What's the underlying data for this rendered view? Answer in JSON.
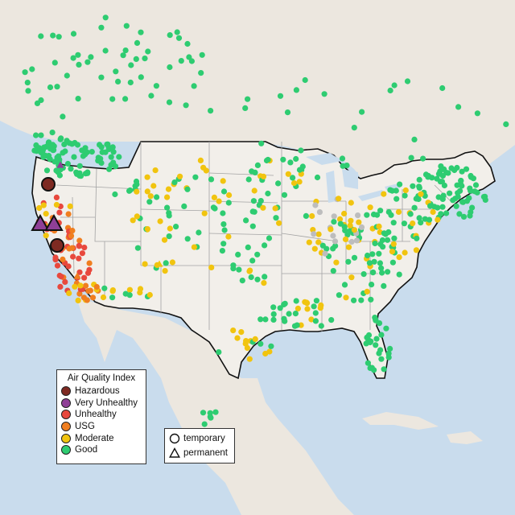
{
  "colors": {
    "ocean": "#c9dced",
    "land": "#ece7df",
    "land_us": "#f2efea",
    "border": "#111111",
    "state_line": "#a3a3a3",
    "Hazardous": "#7e2a22",
    "Very Unhealthy": "#8f3f97",
    "Unhealthy": "#e8483d",
    "USG": "#f07e1f",
    "Moderate": "#f1c40f",
    "Good": "#2ecc71",
    "No data": "#bdbdbd"
  },
  "legend_aqi": {
    "title": "Air Quality Index",
    "items": [
      {
        "label": "Hazardous",
        "category": "Hazardous"
      },
      {
        "label": "Very Unhealthy",
        "category": "Very Unhealthy"
      },
      {
        "label": "Unhealthy",
        "category": "Unhealthy"
      },
      {
        "label": "USG",
        "category": "USG"
      },
      {
        "label": "Moderate",
        "category": "Moderate"
      },
      {
        "label": "Good",
        "category": "Good"
      }
    ]
  },
  "legend_shape": {
    "items": [
      {
        "label": "temporary",
        "shape": "circle"
      },
      {
        "label": "permanent",
        "shape": "triangle"
      }
    ]
  },
  "monitors": {
    "notable": [
      {
        "category": "Hazardous",
        "shape": "circle",
        "region": "southern Oregon"
      },
      {
        "category": "Hazardous",
        "shape": "circle",
        "region": "northern California"
      },
      {
        "category": "Very Unhealthy",
        "shape": "triangle",
        "region": "northern California"
      },
      {
        "category": "Very Unhealthy",
        "shape": "triangle",
        "region": "northern California"
      }
    ],
    "summary_by_region": {
      "California & Oregon": "Unhealthy / USG",
      "Northwest, Midwest, Northeast, Southeast": "Good",
      "Central US & Great Plains": "Moderate"
    }
  }
}
